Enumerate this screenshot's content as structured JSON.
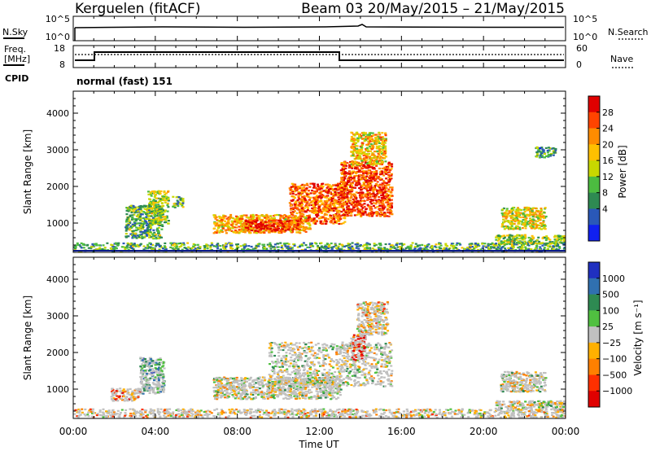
{
  "header": {
    "station": "Kerguelen (fitACF)",
    "beam_dates": "Beam 03 20/May/2015 – 21/May/2015"
  },
  "strips": {
    "nsky_label": "N.Sky",
    "nsky_ticks": [
      "10^5",
      "10^0"
    ],
    "nsearch_label": "N.Search",
    "nsearch_ticks": [
      "10^5",
      "10^0"
    ],
    "freq_label_1": "Freq.",
    "freq_label_2": "[MHz]",
    "freq_ticks": [
      "18",
      "8"
    ],
    "nave_label": "Nave",
    "nave_ticks": [
      "60",
      "0"
    ],
    "cpid_label": "CPID",
    "cpid_value": "normal (fast) 151"
  },
  "chart_data": [
    {
      "type": "heatmap",
      "name": "power-panel",
      "ylabel": "Slant Range [km]",
      "ylim": [
        200,
        4600
      ],
      "yticks": [
        "4000",
        "3000",
        "2000",
        "1000"
      ],
      "xlim": [
        0,
        24
      ],
      "colorbar_label": "Power [dB]",
      "colorbar_ticks": [
        "28",
        "24",
        "20",
        "16",
        "12",
        "8",
        "4"
      ],
      "colorbar_colors": [
        "#e00000",
        "#ff4400",
        "#ff8c00",
        "#ffc000",
        "#c8d800",
        "#4cbc40",
        "#2e8a52",
        "#2a58b8",
        "#1020f0"
      ],
      "features": [
        {
          "t0": 0.0,
          "t1": 24.0,
          "r0": 250,
          "r1": 480,
          "level": 0.35
        },
        {
          "t0": 2.5,
          "t1": 4.3,
          "r0": 600,
          "r1": 1500,
          "level": 0.35
        },
        {
          "t0": 3.6,
          "t1": 4.6,
          "r0": 1000,
          "r1": 1900,
          "level": 0.45
        },
        {
          "t0": 4.8,
          "t1": 5.3,
          "r0": 1450,
          "r1": 1750,
          "level": 0.4
        },
        {
          "t0": 6.8,
          "t1": 11.5,
          "r0": 750,
          "r1": 1250,
          "level": 0.65
        },
        {
          "t0": 8.3,
          "t1": 11.0,
          "r0": 800,
          "r1": 1100,
          "level": 0.9
        },
        {
          "t0": 10.5,
          "t1": 13.2,
          "r0": 1000,
          "r1": 2100,
          "level": 0.8
        },
        {
          "t0": 13.0,
          "t1": 15.5,
          "r0": 1200,
          "r1": 2700,
          "level": 0.85
        },
        {
          "t0": 13.5,
          "t1": 15.2,
          "r0": 2600,
          "r1": 3500,
          "level": 0.6
        },
        {
          "t0": 20.8,
          "t1": 23.0,
          "r0": 850,
          "r1": 1450,
          "level": 0.55
        },
        {
          "t0": 20.5,
          "t1": 24.0,
          "r0": 450,
          "r1": 700,
          "level": 0.45
        },
        {
          "t0": 22.5,
          "t1": 23.5,
          "r0": 2800,
          "r1": 3100,
          "level": 0.3
        }
      ]
    },
    {
      "type": "heatmap",
      "name": "velocity-panel",
      "ylabel": "Slant Range [km]",
      "ylim": [
        200,
        4600
      ],
      "yticks": [
        "4000",
        "3000",
        "2000",
        "1000"
      ],
      "xlim": [
        0,
        24
      ],
      "xticks": [
        "00:00",
        "04:00",
        "08:00",
        "12:00",
        "16:00",
        "20:00",
        "00:00"
      ],
      "xlabel": "Time UT",
      "colorbar_label": "Velocity [m s⁻¹]",
      "colorbar_ticks": [
        "1000",
        "500",
        "100",
        "25",
        "−25",
        "−100",
        "−500",
        "−1000"
      ],
      "colorbar_colors": [
        "#2030c0",
        "#3070b0",
        "#2e8a52",
        "#50c040",
        "#c0c0c0",
        "#ffb000",
        "#ff8000",
        "#ff3000",
        "#e00000"
      ],
      "features": [
        {
          "t0": 0.0,
          "t1": 24.0,
          "r0": 250,
          "r1": 480,
          "level": 0.6
        },
        {
          "t0": 1.8,
          "t1": 3.2,
          "r0": 700,
          "r1": 1050,
          "level": 0.75
        },
        {
          "t0": 3.2,
          "t1": 4.4,
          "r0": 900,
          "r1": 1900,
          "level": 0.3
        },
        {
          "t0": 6.8,
          "t1": 13.0,
          "r0": 750,
          "r1": 1350,
          "level": 0.5
        },
        {
          "t0": 9.5,
          "t1": 15.5,
          "r0": 1100,
          "r1": 2300,
          "level": 0.5
        },
        {
          "t0": 13.5,
          "t1": 14.2,
          "r0": 1800,
          "r1": 2500,
          "level": 0.95
        },
        {
          "t0": 13.8,
          "t1": 15.3,
          "r0": 2500,
          "r1": 3400,
          "level": 0.6
        },
        {
          "t0": 20.8,
          "t1": 23.0,
          "r0": 950,
          "r1": 1500,
          "level": 0.5
        },
        {
          "t0": 20.5,
          "t1": 24.0,
          "r0": 450,
          "r1": 700,
          "level": 0.5
        }
      ]
    }
  ]
}
